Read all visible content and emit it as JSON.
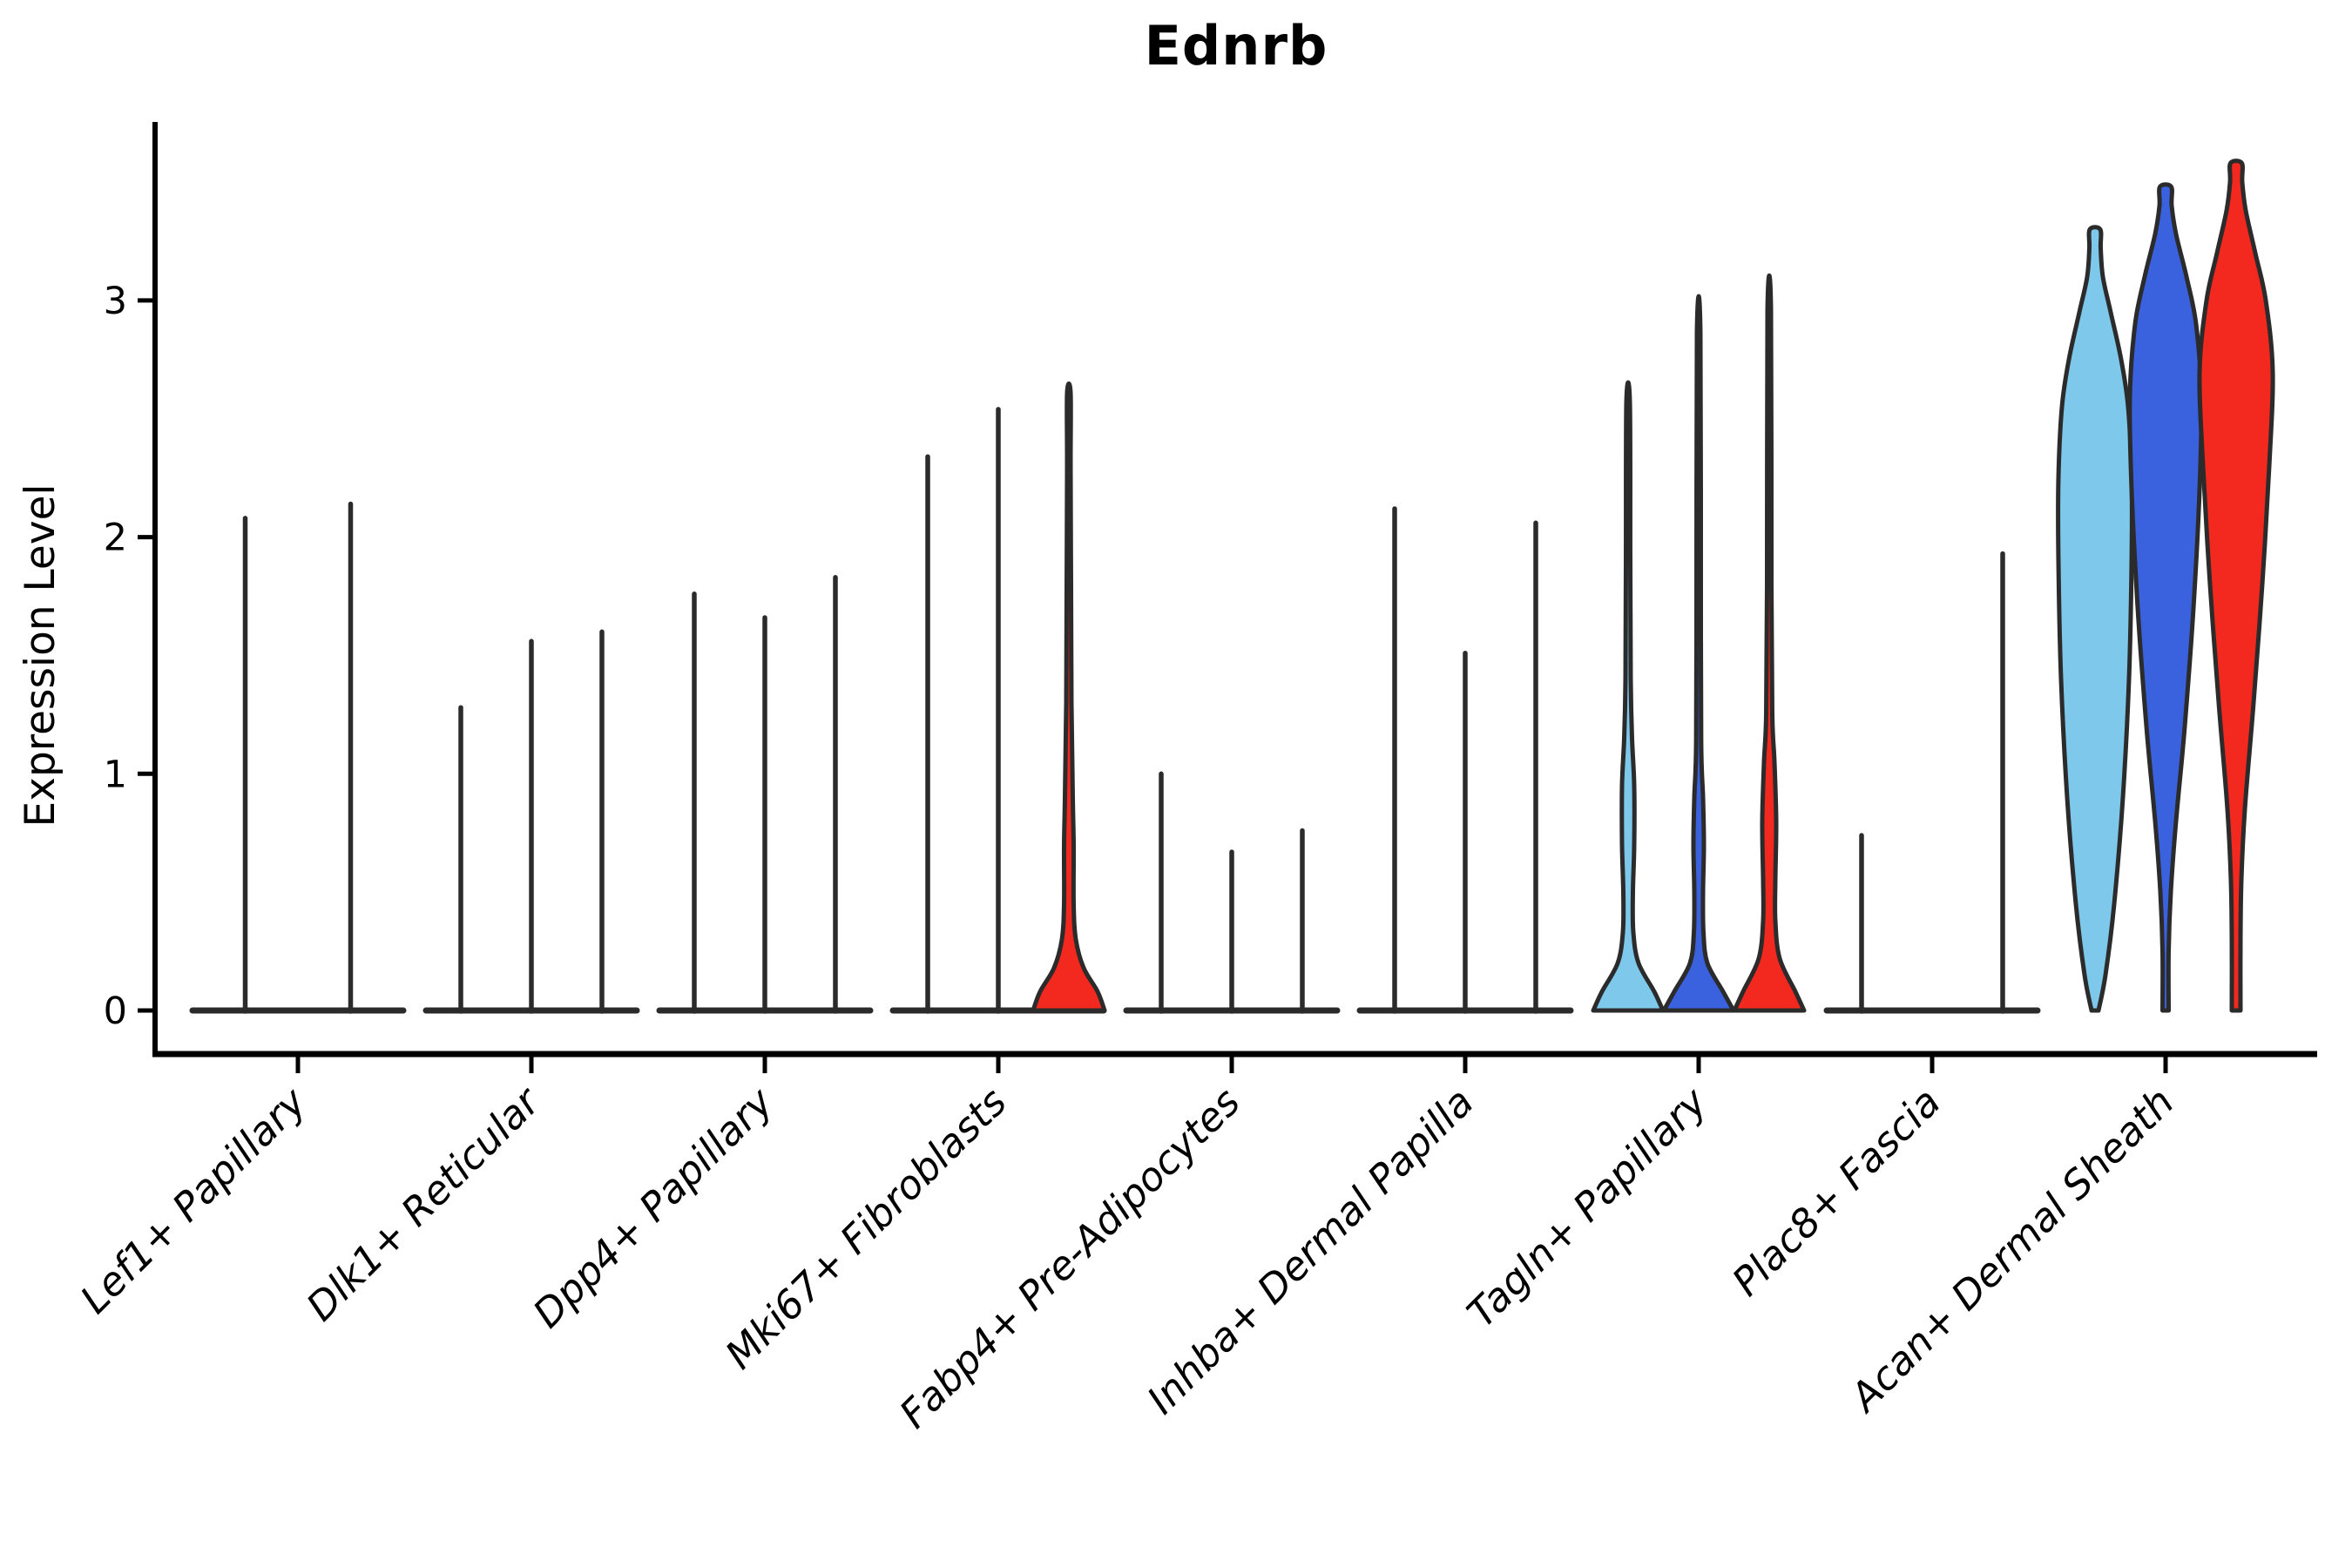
{
  "chart_data": {
    "type": "violin",
    "title": "Ednrb",
    "ylabel": "Expression Level",
    "xlabel": "",
    "ylim": [
      0,
      3.75
    ],
    "yticks": [
      "0",
      "1",
      "2",
      "3"
    ],
    "legend_position": "none",
    "grid": false,
    "violin_colors": [
      "#7EC8EB",
      "#3B62DE",
      "#F3281E"
    ],
    "outline_color": "#2B2B2B",
    "categories": [
      "Lef1+ Papillary",
      "Dlk1+ Reticular",
      "Dpp4+ Papillary",
      "Mki67+ Fibroblasts",
      "Fabp4+ Pre-Adipocytes",
      "Inhba+ Dermal Papilla",
      "Tagln+ Papillary",
      "Plac8+ Fascia",
      "Acan+ Dermal Sheath"
    ],
    "groups": [
      {
        "category": "Lef1+ Papillary",
        "violins": [
          {
            "c": 0,
            "max": 2.08
          },
          {
            "c": 1,
            "max": 2.14
          }
        ]
      },
      {
        "category": "Dlk1+ Reticular",
        "violins": [
          {
            "c": 0,
            "max": 1.28
          },
          {
            "c": 1,
            "max": 1.56
          },
          {
            "c": 2,
            "max": 1.6
          }
        ]
      },
      {
        "category": "Dpp4+ Papillary",
        "violins": [
          {
            "c": 0,
            "max": 1.76
          },
          {
            "c": 1,
            "max": 1.66
          },
          {
            "c": 2,
            "max": 1.83
          }
        ]
      },
      {
        "category": "Mki67+ Fibroblasts",
        "violins": [
          {
            "c": 0,
            "max": 2.34
          },
          {
            "c": 1,
            "max": 2.54
          },
          {
            "c": 2,
            "max": 2.61,
            "profile": [
              [
                0,
                41
              ],
              [
                0.08,
                33
              ],
              [
                0.18,
                17
              ],
              [
                0.3,
                8
              ],
              [
                0.45,
                5.5
              ],
              [
                0.7,
                5.5
              ],
              [
                0.9,
                4.5
              ],
              [
                1.3,
                3
              ],
              [
                1.8,
                2.5
              ],
              [
                2.3,
                2
              ],
              [
                2.61,
                2
              ]
            ]
          }
        ]
      },
      {
        "category": "Fabp4+ Pre-Adipocytes",
        "violins": [
          {
            "c": 0,
            "max": 1.0
          },
          {
            "c": 1,
            "max": 0.67
          },
          {
            "c": 2,
            "max": 0.76
          }
        ]
      },
      {
        "category": "Inhba+ Dermal Papilla",
        "violins": [
          {
            "c": 0,
            "max": 2.12
          },
          {
            "c": 1,
            "max": 1.51
          },
          {
            "c": 2,
            "max": 2.06
          }
        ]
      },
      {
        "category": "Tagln+ Papillary",
        "violins": [
          {
            "c": 0,
            "max": 2.57,
            "profile": [
              [
                0,
                40
              ],
              [
                0.08,
                30
              ],
              [
                0.2,
                12
              ],
              [
                0.33,
                6
              ],
              [
                0.5,
                5.5
              ],
              [
                0.7,
                7
              ],
              [
                0.95,
                7
              ],
              [
                1.15,
                4.5
              ],
              [
                1.4,
                3
              ],
              [
                1.9,
                2.5
              ],
              [
                2.57,
                2
              ]
            ]
          },
          {
            "c": 1,
            "max": 2.86,
            "profile": [
              [
                0,
                40
              ],
              [
                0.08,
                28
              ],
              [
                0.2,
                10
              ],
              [
                0.33,
                5.5
              ],
              [
                0.5,
                5
              ],
              [
                0.7,
                6
              ],
              [
                0.9,
                5
              ],
              [
                1.1,
                3
              ],
              [
                1.6,
                2.5
              ],
              [
                2.86,
                2
              ]
            ]
          },
          {
            "c": 2,
            "max": 2.96,
            "profile": [
              [
                0,
                40
              ],
              [
                0.08,
                30
              ],
              [
                0.22,
                12
              ],
              [
                0.38,
                7
              ],
              [
                0.55,
                7
              ],
              [
                0.8,
                8
              ],
              [
                1.05,
                6
              ],
              [
                1.25,
                3.5
              ],
              [
                1.8,
                2.5
              ],
              [
                2.96,
                2
              ]
            ]
          }
        ]
      },
      {
        "category": "Plac8+ Fascia",
        "violins": [
          {
            "c": 0,
            "max": 0.74
          },
          {
            "c": 1,
            "max": 0.0,
            "flat": true
          },
          {
            "c": 2,
            "max": 1.93
          }
        ]
      },
      {
        "category": "Acan+ Dermal Sheath",
        "violins": [
          {
            "c": 0,
            "max": 3.3,
            "profile": [
              [
                0,
                4
              ],
              [
                0.15,
                12
              ],
              [
                0.45,
                22
              ],
              [
                0.9,
                32
              ],
              [
                1.4,
                39
              ],
              [
                1.9,
                42
              ],
              [
                2.25,
                42
              ],
              [
                2.55,
                38
              ],
              [
                2.75,
                30
              ],
              [
                2.95,
                18
              ],
              [
                3.1,
                9
              ],
              [
                3.22,
                6.5
              ],
              [
                3.3,
                6
              ]
            ]
          },
          {
            "c": 1,
            "max": 3.48,
            "profile": [
              [
                0,
                3.5
              ],
              [
                0.25,
                3.5
              ],
              [
                0.5,
                6
              ],
              [
                0.8,
                12
              ],
              [
                1.2,
                22
              ],
              [
                1.7,
                32
              ],
              [
                2.2,
                39
              ],
              [
                2.6,
                41
              ],
              [
                2.9,
                35
              ],
              [
                3.1,
                24
              ],
              [
                3.28,
                12
              ],
              [
                3.4,
                7
              ],
              [
                3.48,
                6.5
              ]
            ]
          },
          {
            "c": 2,
            "max": 3.58,
            "profile": [
              [
                0,
                5
              ],
              [
                0.3,
                5
              ],
              [
                0.55,
                6
              ],
              [
                0.85,
                10
              ],
              [
                1.3,
                20
              ],
              [
                1.8,
                30
              ],
              [
                2.3,
                38
              ],
              [
                2.7,
                42
              ],
              [
                3.0,
                34
              ],
              [
                3.2,
                22
              ],
              [
                3.38,
                11
              ],
              [
                3.5,
                7
              ],
              [
                3.58,
                6.5
              ]
            ]
          }
        ]
      }
    ]
  }
}
